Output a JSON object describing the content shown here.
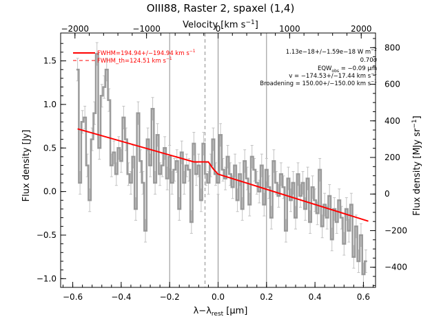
{
  "chart_data": {
    "type": "line",
    "title": "OIII88, Raster 2, spaxel (1,4)",
    "xlabel": "λ−λ_rest [μm]",
    "xlabel_parts": {
      "lambda": "λ",
      "minus": "−",
      "lambda2": "λ",
      "sub": "rest",
      "unit": " [μm]"
    },
    "ylabel": "Flux density [Jy]",
    "top_xlabel": "Velocity [km s⁻¹]",
    "top_xlabel_parts": {
      "main": "Velocity [km s",
      "sup": "−1",
      "close": "]"
    },
    "right_ylabel": "Flux density [MJy sr⁻¹]",
    "right_ylabel_parts": {
      "main": "Flux density [MJy sr",
      "sup": "−1",
      "close": "]"
    },
    "xlim": [
      -0.65,
      0.65
    ],
    "ylim": [
      -1.1,
      1.82
    ],
    "top_xlim": [
      -2200,
      2200
    ],
    "right_ylim": [
      -510,
      880
    ],
    "x_ticks": [
      -0.6,
      -0.4,
      -0.2,
      0.0,
      0.2,
      0.4,
      0.6
    ],
    "x_tick_labels": [
      "−0.6",
      "−0.4",
      "−0.2",
      "0.0",
      "0.2",
      "0.4",
      "0.6"
    ],
    "y_ticks": [
      -1.0,
      -0.5,
      0.0,
      0.5,
      1.0,
      1.5
    ],
    "y_tick_labels": [
      "−1.0",
      "−0.5",
      "0.0",
      "0.5",
      "1.0",
      "1.5"
    ],
    "top_ticks": [
      -2000,
      -1000,
      0,
      1000,
      2000
    ],
    "top_tick_labels": [
      "−2000",
      "−1000",
      "0",
      "1000",
      "2000"
    ],
    "right_ticks": [
      -400,
      -200,
      0,
      200,
      400,
      600,
      800
    ],
    "right_tick_labels": [
      "−400",
      "−200",
      "0",
      "200",
      "400",
      "600",
      "800"
    ],
    "vlines_solid": [
      -0.2,
      0.0,
      0.2
    ],
    "vlines_dashed": [
      -0.054
    ],
    "legend": {
      "position": "top-left",
      "fit": {
        "text": "FWHM=194.94+/−194.94 km s",
        "sup": "−1",
        "color": "#ff0000",
        "style": "solid"
      },
      "fwhm_th": {
        "text": "FWHM_th=124.51 km s",
        "sup": "−1",
        "color": "#ff0000",
        "style": "dashed"
      }
    },
    "annotations": {
      "line1": "1.13e−18+/−1.59e−18 W m",
      "line1_sup": "−2",
      "line2": "0.70σ",
      "line3_pre": "EQW",
      "line3_sub": "obs",
      "line3_post": " = −0.09 μm",
      "line4": "v = −174.53+/−17.44 km s",
      "line4_sup": "−1",
      "line5": "Broadening = 150.00+/−150.00 km s",
      "line5_sup": "−1"
    },
    "series": [
      {
        "style": "step",
        "color": "#9a9a9a",
        "with_error_bars": true,
        "x": [
          -0.58,
          -0.57,
          -0.56,
          -0.55,
          -0.54,
          -0.53,
          -0.52,
          -0.51,
          -0.5,
          -0.49,
          -0.48,
          -0.47,
          -0.46,
          -0.45,
          -0.44,
          -0.43,
          -0.42,
          -0.41,
          -0.4,
          -0.39,
          -0.38,
          -0.37,
          -0.36,
          -0.35,
          -0.34,
          -0.33,
          -0.32,
          -0.31,
          -0.3,
          -0.29,
          -0.28,
          -0.27,
          -0.26,
          -0.25,
          -0.24,
          -0.23,
          -0.22,
          -0.21,
          -0.2,
          -0.19,
          -0.18,
          -0.17,
          -0.16,
          -0.15,
          -0.14,
          -0.13,
          -0.12,
          -0.11,
          -0.1,
          -0.09,
          -0.08,
          -0.07,
          -0.06,
          -0.05,
          -0.04,
          -0.03,
          -0.02,
          -0.01,
          0.0,
          0.01,
          0.02,
          0.03,
          0.04,
          0.05,
          0.06,
          0.07,
          0.08,
          0.09,
          0.1,
          0.11,
          0.12,
          0.13,
          0.14,
          0.15,
          0.16,
          0.17,
          0.18,
          0.19,
          0.2,
          0.21,
          0.22,
          0.23,
          0.24,
          0.25,
          0.26,
          0.27,
          0.28,
          0.29,
          0.3,
          0.31,
          0.32,
          0.33,
          0.34,
          0.35,
          0.36,
          0.37,
          0.38,
          0.39,
          0.4,
          0.41,
          0.42,
          0.43,
          0.44,
          0.45,
          0.46,
          0.47,
          0.48,
          0.49,
          0.5,
          0.51,
          0.52,
          0.53,
          0.54,
          0.55,
          0.56,
          0.57,
          0.58,
          0.59,
          0.6,
          0.61
        ],
        "y": [
          1.4,
          0.1,
          0.8,
          0.85,
          0.3,
          -0.1,
          0.6,
          0.9,
          1.58,
          0.5,
          1.1,
          1.2,
          1.4,
          1.05,
          0.3,
          0.45,
          0.2,
          0.5,
          0.35,
          0.85,
          0.6,
          0.2,
          0.1,
          0.4,
          -0.2,
          0.9,
          0.35,
          0.1,
          -0.45,
          0.6,
          0.3,
          0.95,
          0.1,
          0.65,
          0.2,
          0.3,
          0.5,
          0.15,
          0.4,
          0.1,
          0.25,
          0.35,
          -0.2,
          0.45,
          0.1,
          0.3,
          0.25,
          -0.35,
          0.55,
          0.2,
          0.3,
          -0.1,
          0.55,
          0.2,
          0.1,
          0.3,
          0.6,
          0.2,
          0.1,
          0.65,
          0.25,
          0.15,
          0.4,
          0.2,
          0.05,
          0.3,
          -0.1,
          0.2,
          -0.2,
          0.35,
          0.15,
          -0.15,
          0.4,
          0.25,
          0.1,
          0.0,
          0.3,
          -0.15,
          0.25,
          0.05,
          -0.3,
          0.35,
          0.1,
          -0.05,
          0.2,
          0.05,
          -0.45,
          0.15,
          -0.1,
          0.1,
          -0.3,
          0.2,
          -0.05,
          0.1,
          -0.2,
          0.15,
          -0.35,
          0.05,
          -0.1,
          -0.25,
          0.25,
          -0.4,
          -0.15,
          -0.3,
          -0.05,
          -0.55,
          -0.2,
          -0.35,
          -0.1,
          -0.3,
          -0.6,
          -0.2,
          -0.45,
          -0.15,
          -0.75,
          -0.4,
          -0.8,
          -0.5,
          -0.95,
          -0.8
        ],
        "yerr": 0.13
      },
      {
        "style": "line",
        "color": "#ff0000",
        "fit": true,
        "x": [
          -0.58,
          -0.1,
          -0.08,
          -0.06,
          -0.04,
          -0.02,
          0.0,
          0.62
        ],
        "y": [
          0.72,
          0.34,
          0.34,
          0.34,
          0.34,
          0.26,
          0.2,
          -0.34
        ]
      }
    ]
  }
}
